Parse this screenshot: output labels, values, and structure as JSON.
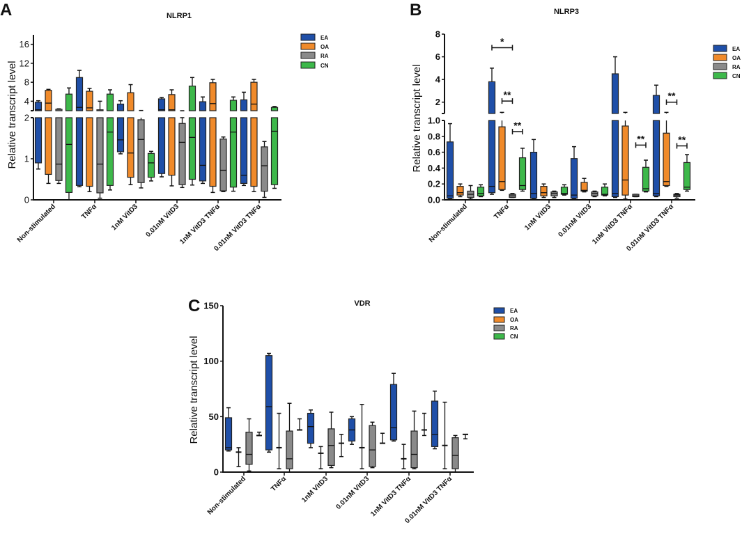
{
  "colors": {
    "EA": "#1f4fa8",
    "OA": "#f08a2a",
    "RA": "#8a8a8a",
    "CN": "#3db84a"
  },
  "chart_data": [
    {
      "panel": "A",
      "title": "NLRP1",
      "type": "box",
      "ylabel": "Relative transcript level",
      "categories": [
        "Non-stimulated",
        "TNFα",
        "1nM VitD3",
        "0.01nM VitD3",
        "1nM VitD3 TNFα",
        "0.01nM VitD3 TNFα"
      ],
      "legend": [
        "EA",
        "OA",
        "RA",
        "CN"
      ],
      "y_segments": [
        {
          "range": [
            0,
            2
          ],
          "ticks": [
            "0",
            "1",
            "2"
          ]
        },
        {
          "range": [
            2,
            18
          ],
          "ticks": [
            "4",
            "8",
            "12",
            "16"
          ]
        }
      ],
      "series": [
        {
          "name": "EA",
          "boxes": [
            [
              0.75,
              0.9,
              2.2,
              3.8,
              4.1
            ],
            [
              0.32,
              0.35,
              2.7,
              9.0,
              10.5
            ],
            [
              1.12,
              1.17,
              1.46,
              3.4,
              4.1
            ],
            [
              0.56,
              0.64,
              2.2,
              4.5,
              4.8
            ],
            [
              0.4,
              0.46,
              0.84,
              3.9,
              4.9
            ],
            [
              0.35,
              0.4,
              0.6,
              4.3,
              5.9
            ]
          ]
        },
        {
          "name": "OA",
          "boxes": [
            [
              0.4,
              0.62,
              3.6,
              6.3,
              6.5
            ],
            [
              0.2,
              0.33,
              2.6,
              6.1,
              6.7
            ],
            [
              0.37,
              0.55,
              1.14,
              5.8,
              7.5
            ],
            [
              0.34,
              0.6,
              2.2,
              5.4,
              6.4
            ],
            [
              0.18,
              0.33,
              3.5,
              7.9,
              8.6
            ],
            [
              0.2,
              0.33,
              3.4,
              8.0,
              8.6
            ]
          ]
        },
        {
          "name": "RA",
          "boxes": [
            [
              0.4,
              0.47,
              0.87,
              2.3,
              2.4
            ],
            [
              0.04,
              0.17,
              0.87,
              2.2,
              4.0
            ],
            [
              0.29,
              0.42,
              1.47,
              1.95,
              2.05
            ],
            [
              0.3,
              0.37,
              1.4,
              1.86,
              2.0
            ],
            [
              0.2,
              0.22,
              0.72,
              1.48,
              1.53
            ],
            [
              0.06,
              0.21,
              0.83,
              1.29,
              1.42
            ]
          ]
        },
        {
          "name": "CN",
          "boxes": [
            [
              0,
              0.18,
              1.35,
              5.5,
              6.8
            ],
            [
              0.24,
              0.35,
              1.65,
              5.5,
              6.4
            ],
            [
              0.46,
              0.55,
              0.9,
              1.13,
              1.18
            ],
            [
              0.36,
              0.5,
              1.52,
              7.2,
              9.0
            ],
            [
              0.21,
              0.31,
              1.65,
              4.2,
              4.9
            ],
            [
              0.28,
              0.37,
              1.67,
              2.7,
              2.9
            ]
          ]
        }
      ],
      "annotations": []
    },
    {
      "panel": "B",
      "title": "NLRP3",
      "type": "box",
      "ylabel": "Relative transcript level",
      "categories": [
        "Non-stimulated",
        "TNFα",
        "1nM VitD3",
        "0.01nM VitD3",
        "1nM VitD3 TNFα",
        "0.01nM VitD3 TNFα"
      ],
      "legend": [
        "EA",
        "OA",
        "RA",
        "CN"
      ],
      "y_segments": [
        {
          "range": [
            0,
            1
          ],
          "ticks": [
            "0.0",
            "0.2",
            "0.4",
            "0.6",
            "0.8",
            "1.0"
          ]
        },
        {
          "range": [
            1,
            8
          ],
          "ticks": [
            "2",
            "4",
            "6",
            "8"
          ]
        }
      ],
      "series": [
        {
          "name": "EA",
          "boxes": [
            [
              0.01,
              0.02,
              0.05,
              0.73,
              0.96
            ],
            [
              0.07,
              0.09,
              0.17,
              3.8,
              5.0
            ],
            [
              0.01,
              0.02,
              0.08,
              0.6,
              0.76
            ],
            [
              0.01,
              0.02,
              0.06,
              0.52,
              0.67
            ],
            [
              0.03,
              0.04,
              0.08,
              4.5,
              6.0
            ],
            [
              0.04,
              0.05,
              0.08,
              2.6,
              3.5
            ]
          ]
        },
        {
          "name": "OA",
          "boxes": [
            [
              0.04,
              0.06,
              0.09,
              0.17,
              0.2
            ],
            [
              0.12,
              0.13,
              0.23,
              0.92,
              1.1
            ],
            [
              0.03,
              0.05,
              0.09,
              0.17,
              0.2
            ],
            [
              0.1,
              0.11,
              0.12,
              0.22,
              0.27
            ],
            [
              0.01,
              0.06,
              0.25,
              0.93,
              1.1
            ],
            [
              0.17,
              0.18,
              0.23,
              0.84,
              1.1
            ]
          ]
        },
        {
          "name": "RA",
          "boxes": [
            [
              0.01,
              0.03,
              0.07,
              0.11,
              0.18
            ],
            [
              0.03,
              0.03,
              0.05,
              0.07,
              0.08
            ],
            [
              0.03,
              0.05,
              0.08,
              0.1,
              0.11
            ],
            [
              0.04,
              0.05,
              0.08,
              0.1,
              0.11
            ],
            [
              0.04,
              0.04,
              0.05,
              0.07,
              0.07
            ],
            [
              0.02,
              0.04,
              0.06,
              0.07,
              0.08
            ]
          ]
        },
        {
          "name": "CN",
          "boxes": [
            [
              0.04,
              0.05,
              0.08,
              0.16,
              0.19
            ],
            [
              0.11,
              0.13,
              0.18,
              0.53,
              0.65
            ],
            [
              0.06,
              0.07,
              0.08,
              0.16,
              0.19
            ],
            [
              0.05,
              0.06,
              0.07,
              0.16,
              0.2
            ],
            [
              0.1,
              0.11,
              0.14,
              0.41,
              0.5
            ],
            [
              0.11,
              0.13,
              0.16,
              0.47,
              0.57
            ]
          ]
        }
      ],
      "annotations": [
        {
          "label": "*",
          "group": 1,
          "from": "EA",
          "to": "RA",
          "y": 6.8
        },
        {
          "label": "**",
          "group": 1,
          "from": "OA",
          "to": "RA",
          "y": 2.1
        },
        {
          "label": "**",
          "group": 1,
          "from": "RA",
          "to": "CN",
          "y": 0.86
        },
        {
          "label": "**",
          "group": 4,
          "from": "RA",
          "to": "CN",
          "y": 0.69
        },
        {
          "label": "**",
          "group": 5,
          "from": "OA",
          "to": "RA",
          "y": 2.0
        },
        {
          "label": "**",
          "group": 5,
          "from": "RA",
          "to": "CN",
          "y": 0.68
        }
      ]
    },
    {
      "panel": "C",
      "title": "VDR",
      "type": "box",
      "ylabel": "Relative transcript level",
      "categories": [
        "Non-stimulated",
        "TNFα",
        "1nM VitD3",
        "0.01nM VitD3",
        "1nM VitD3 TNFα",
        "0.01nM VitD3 TNFα"
      ],
      "legend": [
        "EA",
        "OA",
        "RA",
        "CN"
      ],
      "y_segments": [
        {
          "range": [
            0,
            150
          ],
          "ticks": [
            "0",
            "50",
            "100",
            "150"
          ]
        }
      ],
      "series": [
        {
          "name": "EA",
          "boxes": [
            [
              19,
              20,
              22,
              49,
              58
            ],
            [
              18,
              20,
              59,
              105,
              107
            ],
            [
              22,
              26,
              41,
              53,
              56
            ],
            [
              25,
              28,
              38,
              48,
              50
            ],
            [
              28,
              29,
              40,
              79,
              89
            ],
            [
              21,
              23,
              34,
              64,
              73
            ]
          ]
        },
        {
          "name": "OA",
          "boxes": [
            [
              5,
              18,
              18,
              18,
              22
            ],
            [
              3,
              22,
              22,
              22,
              53
            ],
            [
              3,
              17,
              17,
              17,
              23
            ],
            [
              3,
              22,
              22,
              22,
              61
            ],
            [
              3,
              12,
              12,
              12,
              25
            ],
            [
              3,
              24,
              24,
              24,
              63
            ]
          ]
        },
        {
          "name": "RA",
          "boxes": [
            [
              1,
              7,
              16,
              36,
              48
            ],
            [
              0,
              3,
              12,
              37,
              62
            ],
            [
              4,
              6,
              24,
              39,
              54
            ],
            [
              4,
              5,
              20,
              42,
              45
            ],
            [
              3,
              4,
              16,
              37,
              55
            ],
            [
              0,
              3,
              15,
              31,
              33
            ]
          ]
        },
        {
          "name": "CN",
          "boxes": [
            [
              33,
              33,
              33,
              33,
              36
            ],
            [
              38,
              38,
              38,
              38,
              48
            ],
            [
              14,
              26,
              26,
              26,
              34
            ],
            [
              26,
              26,
              26,
              26,
              35
            ],
            [
              33,
              38,
              38,
              38,
              53
            ],
            [
              30,
              34,
              34,
              34,
              34
            ]
          ]
        }
      ],
      "annotations": []
    }
  ]
}
